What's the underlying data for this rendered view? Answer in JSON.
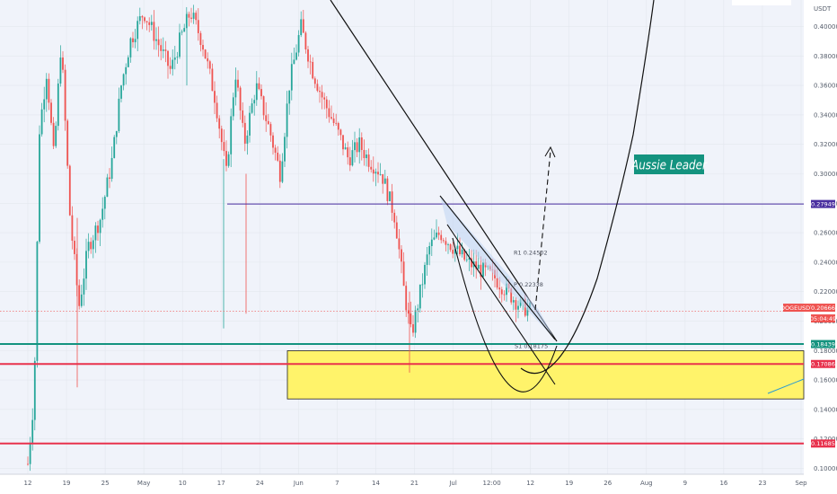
{
  "chart_data": {
    "type": "candlestick",
    "symbol": "DOGEUSDT",
    "currency_label": "USDT",
    "y_ticks": [
      "0.40000",
      "0.38000",
      "0.36000",
      "0.34000",
      "0.32000",
      "0.30000",
      "0.28000",
      "0.26000",
      "0.24000",
      "0.22000",
      "0.20000",
      "0.18000",
      "0.16000",
      "0.14000",
      "0.12000",
      "0.10000"
    ],
    "y_tick_values": [
      0.4,
      0.38,
      0.36,
      0.34,
      0.32,
      0.3,
      0.28,
      0.26,
      0.24,
      0.22,
      0.2,
      0.18,
      0.16,
      0.14,
      0.12,
      0.1
    ],
    "ylim": [
      0.096,
      0.418
    ],
    "x_ticks": [
      "12",
      "19",
      "25",
      "May",
      "10",
      "17",
      "24",
      "Jun",
      "7",
      "14",
      "21",
      "Jul",
      "12:00",
      "12",
      "19",
      "26",
      "Aug",
      "9",
      "16",
      "23",
      "Sep"
    ],
    "price_labels": [
      {
        "text": "0.27949",
        "value": 0.27949,
        "color": "#4a2fa0",
        "line": true,
        "line_start_tick": 4
      },
      {
        "text": "DOGEUSDT",
        "value": 0.20666,
        "color": "#ef5350"
      },
      {
        "text": "0.20666",
        "value": 0.20666,
        "color": "#ef5350",
        "line": true,
        "dotted": true
      },
      {
        "text": "05:04:49",
        "value": 0.20666,
        "color": "#ef5350",
        "sub": true
      },
      {
        "text": "0.18439",
        "value": 0.18439,
        "color": "#14937f",
        "line": true
      },
      {
        "text": "0.17086",
        "value": 0.17086,
        "color": "#e8324d",
        "line": true
      },
      {
        "text": "0.11685",
        "value": 0.11685,
        "color": "#e8324d",
        "line": true
      }
    ],
    "support_zone": {
      "top": 0.17986,
      "bottom": 0.14712,
      "color": "#fff36a"
    },
    "annotations": [
      {
        "text": "R1 0.24502",
        "value": 0.24502
      },
      {
        "text": "P 0.22338",
        "value": 0.22338
      },
      {
        "text": "S1 0.18175",
        "value": 0.18175
      }
    ],
    "watermark": "Aussie Leader",
    "colors": {
      "up": "#26a69a",
      "down": "#ef5350",
      "accent": "#14937f"
    }
  }
}
